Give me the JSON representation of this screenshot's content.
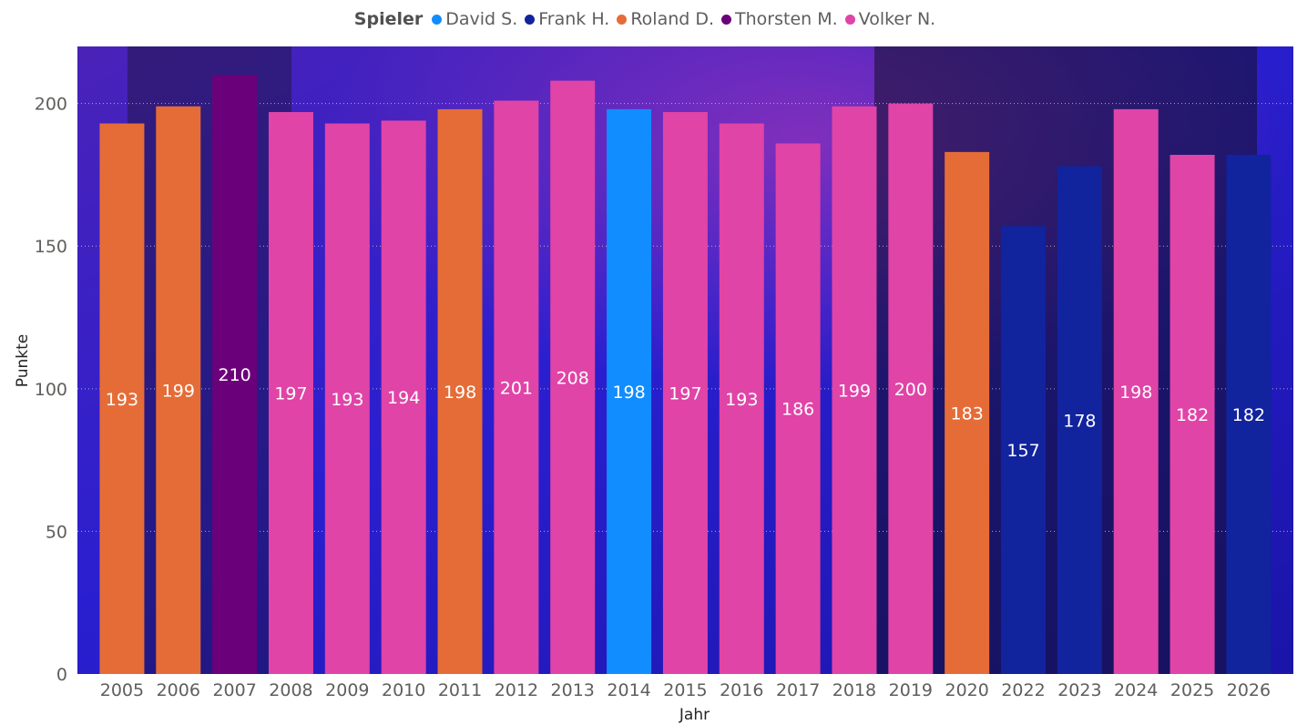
{
  "chart_data": {
    "type": "bar",
    "legend_title": "Spieler",
    "legend": [
      {
        "name": "David S.",
        "color": "#118DFF"
      },
      {
        "name": "Frank H.",
        "color": "#12239E"
      },
      {
        "name": "Roland D.",
        "color": "#E66C37"
      },
      {
        "name": "Thorsten M.",
        "color": "#6B007B"
      },
      {
        "name": "Volker N.",
        "color": "#E044A7"
      }
    ],
    "categories": [
      "2005",
      "2006",
      "2007",
      "2008",
      "2009",
      "2010",
      "2011",
      "2012",
      "2013",
      "2014",
      "2015",
      "2016",
      "2017",
      "2018",
      "2019",
      "2020",
      "2022",
      "2023",
      "2024",
      "2025",
      "2026"
    ],
    "values": [
      193,
      199,
      210,
      197,
      193,
      194,
      198,
      201,
      208,
      198,
      197,
      193,
      186,
      199,
      200,
      183,
      157,
      178,
      198,
      182,
      182
    ],
    "players": [
      "Roland D.",
      "Roland D.",
      "Thorsten M.",
      "Volker N.",
      "Volker N.",
      "Volker N.",
      "Roland D.",
      "Volker N.",
      "Volker N.",
      "David S.",
      "Volker N.",
      "Volker N.",
      "Volker N.",
      "Volker N.",
      "Volker N.",
      "Roland D.",
      "Frank H.",
      "Frank H.",
      "Volker N.",
      "Volker N.",
      "Frank H."
    ],
    "xlabel": "Jahr",
    "ylabel": "Punkte",
    "ylim": [
      0,
      220
    ],
    "yticks": [
      0,
      50,
      100,
      150,
      200
    ],
    "legend_position": "top-center"
  }
}
